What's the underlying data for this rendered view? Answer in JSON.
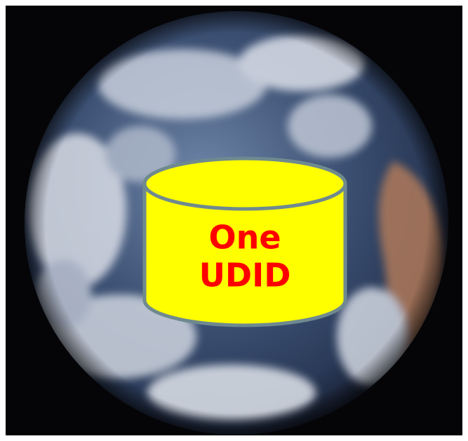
{
  "label": {
    "lines": [
      "One",
      "UDID"
    ]
  }
}
